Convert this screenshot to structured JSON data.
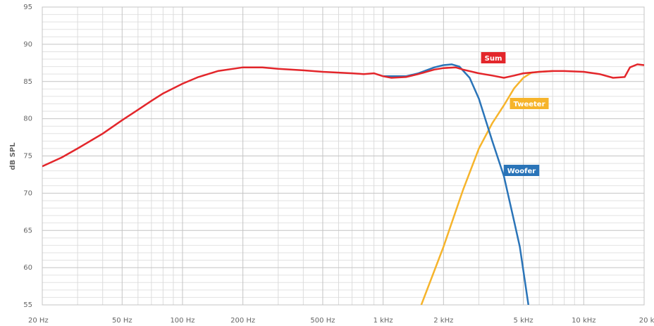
{
  "chart_data": {
    "type": "line",
    "ylabel": "dB SPL",
    "xscale": "log",
    "grid": true,
    "xlim": [
      20,
      20000
    ],
    "ylim": [
      55,
      95
    ],
    "xticks": [
      {
        "value": 20,
        "label": "20 Hz"
      },
      {
        "value": 50,
        "label": "50 Hz"
      },
      {
        "value": 100,
        "label": "100 Hz"
      },
      {
        "value": 200,
        "label": "200 Hz"
      },
      {
        "value": 500,
        "label": "500 Hz"
      },
      {
        "value": 1000,
        "label": "1 kHz"
      },
      {
        "value": 2000,
        "label": "2 kHz"
      },
      {
        "value": 5000,
        "label": "5 kHz"
      },
      {
        "value": 10000,
        "label": "10 kHz"
      },
      {
        "value": 20000,
        "label": "20 kHz"
      }
    ],
    "xminorticks": [
      30,
      40,
      60,
      70,
      80,
      90,
      300,
      400,
      600,
      700,
      800,
      900,
      3000,
      4000,
      6000,
      7000,
      8000,
      9000
    ],
    "yticks": [
      55,
      60,
      65,
      70,
      75,
      80,
      85,
      90,
      95
    ],
    "yminorticks": [
      56,
      57,
      58,
      59,
      61,
      62,
      63,
      64,
      66,
      67,
      68,
      69,
      71,
      72,
      73,
      74,
      76,
      77,
      78,
      79,
      81,
      82,
      83,
      84,
      86,
      87,
      88,
      89,
      91,
      92,
      93,
      94
    ],
    "series": [
      {
        "name": "Tweeter",
        "color": "#f6b42b",
        "x": [
          1550,
          2000,
          2500,
          3000,
          3500,
          4000,
          4500,
          5000,
          5500,
          6000,
          7000
        ],
        "values": [
          55,
          62.8,
          70.4,
          76,
          79.4,
          81.8,
          84.1,
          85.5,
          86.2,
          86.3,
          86.4
        ]
      },
      {
        "name": "Woofer",
        "color": "#2a74b8",
        "x": [
          1000,
          1300,
          1500,
          1800,
          2000,
          2200,
          2400,
          2700,
          3000,
          3500,
          4000,
          4500,
          4800,
          5300
        ],
        "values": [
          85.7,
          85.7,
          86.1,
          86.9,
          87.2,
          87.3,
          87.0,
          85.5,
          82.7,
          77,
          72.3,
          66.2,
          62.8,
          55
        ]
      },
      {
        "name": "Sum",
        "color": "#e3262b",
        "x": [
          20,
          25,
          30,
          40,
          50,
          60,
          70,
          80,
          100,
          120,
          150,
          200,
          250,
          300,
          400,
          500,
          600,
          700,
          800,
          900,
          1000,
          1100,
          1300,
          1500,
          1800,
          2000,
          2300,
          2500,
          3000,
          3500,
          4000,
          4500,
          5000,
          6000,
          7000,
          8000,
          10000,
          12000,
          14000,
          16000,
          17000,
          18500,
          20000
        ],
        "values": [
          73.6,
          74.8,
          76,
          78,
          79.8,
          81.2,
          82.4,
          83.4,
          84.7,
          85.6,
          86.4,
          86.9,
          86.9,
          86.7,
          86.5,
          86.3,
          86.2,
          86.1,
          86.0,
          86.1,
          85.7,
          85.5,
          85.6,
          86.0,
          86.6,
          86.8,
          86.9,
          86.6,
          86.1,
          85.8,
          85.5,
          85.8,
          86.1,
          86.3,
          86.4,
          86.4,
          86.3,
          86.0,
          85.5,
          85.6,
          86.9,
          87.3,
          87.2
        ]
      }
    ]
  }
}
